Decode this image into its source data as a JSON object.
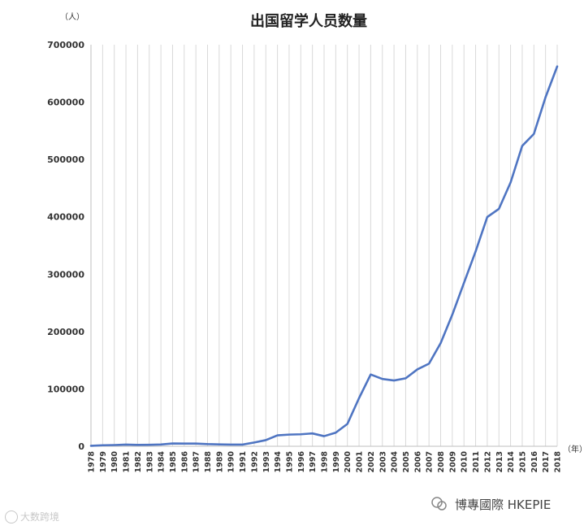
{
  "chart_data": {
    "type": "line",
    "title": "出国留学人员数量",
    "y_unit_label": "（人）",
    "x_unit_label": "（年）",
    "ylim": [
      0,
      700000
    ],
    "y_ticks": [
      "0",
      "100000",
      "200000",
      "300000",
      "400000",
      "500000",
      "600000",
      "700000"
    ],
    "y_tick_values": [
      0,
      100000,
      200000,
      300000,
      400000,
      500000,
      600000,
      700000
    ],
    "grid": "vertical lines at each year",
    "legend": "none",
    "x": [
      "1978",
      "1979",
      "1980",
      "1981",
      "1982",
      "1983",
      "1984",
      "1985",
      "1986",
      "1987",
      "1988",
      "1989",
      "1990",
      "1991",
      "1992",
      "1993",
      "1994",
      "1995",
      "1996",
      "1997",
      "1998",
      "1999",
      "2000",
      "2001",
      "2002",
      "2003",
      "2004",
      "2005",
      "2006",
      "2007",
      "2008",
      "2009",
      "2010",
      "2011",
      "2012",
      "2013",
      "2014",
      "2015",
      "2016",
      "2017",
      "2018"
    ],
    "series": [
      {
        "color": "#4f75c2",
        "values": [
          860,
          1777,
          2124,
          2922,
          2326,
          2633,
          3073,
          4888,
          4676,
          4703,
          3786,
          3329,
          2950,
          2900,
          6540,
          10742,
          19071,
          20381,
          20905,
          22410,
          17622,
          23749,
          38989,
          83973,
          125179,
          117307,
          114682,
          118515,
          134000,
          144000,
          179800,
          229300,
          284700,
          339700,
          399600,
          413900,
          459800,
          523700,
          544500,
          608400,
          662100
        ]
      }
    ]
  },
  "watermarks": {
    "left": "大数跨境",
    "right": "博專國際 HKEPIE"
  }
}
